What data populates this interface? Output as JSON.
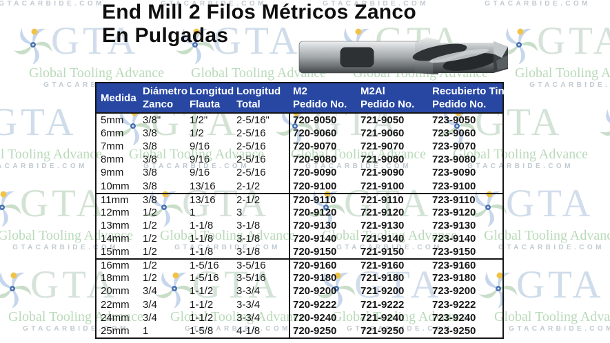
{
  "title": {
    "line1": "End Mill 2 Filos Métricos Zanco",
    "line2": "En Pulgadas"
  },
  "watermark": {
    "logo_text": "GTA",
    "tagline": "Global Tooling Advance",
    "website": "GTACARBIDE.COM"
  },
  "colors": {
    "header_bg": "#2747A3",
    "header_text": "#FFFFFF",
    "border": "#151515",
    "body_text": "#161616",
    "title_text": "#0F0F0F",
    "watermark_tagline_green": "#B9DAB9",
    "watermark_website_gray": "#C1C9D1",
    "watermark_letters": [
      "#D3E3D6",
      "#D2DDEC",
      "#CFDCEA",
      "#D3E3D3",
      "#D6E2DA"
    ],
    "swirl_blue": "#C6D6EC",
    "swirl_green": "#C9DEC9",
    "swirl_yellow": "#F0C348",
    "swirl_center_blue": "#4A72B4"
  },
  "table": {
    "header": {
      "columns": [
        {
          "line1": "Medida",
          "line2": ""
        },
        {
          "line1": "Diámetro",
          "line2": "Zanco"
        },
        {
          "line1": "Longitud",
          "line2": "Flauta"
        },
        {
          "line1": "Longitud",
          "line2": "Total"
        },
        {
          "line1": "M2",
          "line2": "Pedido No."
        },
        {
          "line1": "M2Al",
          "line2": "Pedido No."
        },
        {
          "line1": "Recubierto Tin",
          "line2": "Pedido No."
        }
      ]
    },
    "groups": [
      {
        "rows": [
          [
            "5mm",
            "3/8\"",
            "1/2\"",
            "2-5/16\"",
            "720-9050",
            "721-9050",
            "723-9050"
          ],
          [
            "6mm",
            "3/8",
            "1/2",
            "2-5/16",
            "720-9060",
            "721-9060",
            "723-9060"
          ],
          [
            "7mm",
            "3/8",
            "9/16",
            "2-5/16",
            "720-9070",
            "721-9070",
            "723-9070"
          ],
          [
            "8mm",
            "3/8",
            "9/16",
            "2-5/16",
            "720-9080",
            "721-9080",
            "723-9080"
          ],
          [
            "9mm",
            "3/8",
            "9/16",
            "2-5/16",
            "720-9090",
            "721-9090",
            "723-9090"
          ],
          [
            "10mm",
            "3/8",
            "13/16",
            "2-1/2",
            "720-9100",
            "721-9100",
            "723-9100"
          ]
        ]
      },
      {
        "rows": [
          [
            "11mm",
            "3/8",
            "13/16",
            "2-1/2",
            "720-9110",
            "721-9110",
            "723-9110"
          ],
          [
            "12mm",
            "1/2",
            "1",
            "3",
            "720-9120",
            "721-9120",
            "723-9120"
          ],
          [
            "13mm",
            "1/2",
            "1-1/8",
            "3-1/8",
            "720-9130",
            "721-9130",
            "723-9130"
          ],
          [
            "14mm",
            "1/2",
            "1-1/8",
            "3-1/8",
            "720-9140",
            "721-9140",
            "723-9140"
          ],
          [
            "15mm",
            "1/2",
            "1-1/8",
            "3-1/8",
            "720-9150",
            "721-9150",
            "723-9150"
          ]
        ]
      },
      {
        "rows": [
          [
            "16mm",
            "1/2",
            "1-5/16",
            "3-5/16",
            "720-9160",
            "721-9160",
            "723-9160"
          ],
          [
            "18mm",
            "1/2",
            "1-5/16",
            "3-5/16",
            "720-9180",
            "721-9180",
            "723-9180"
          ],
          [
            "20mm",
            "3/4",
            "1-1/2",
            "3-3/4",
            "720-9200",
            "721-9200",
            "723-9200"
          ],
          [
            "22mm",
            "3/4",
            "1-1/2",
            "3-3/4",
            "720-9222",
            "721-9222",
            "723-9222"
          ],
          [
            "24mm",
            "3/4",
            "1-1/2",
            "3-3/4",
            "720-9240",
            "721-9240",
            "723-9240"
          ],
          [
            "25mm",
            "1",
            "1-5/8",
            "4-1/8",
            "720-9250",
            "721-9250",
            "723-9250"
          ]
        ]
      }
    ]
  }
}
